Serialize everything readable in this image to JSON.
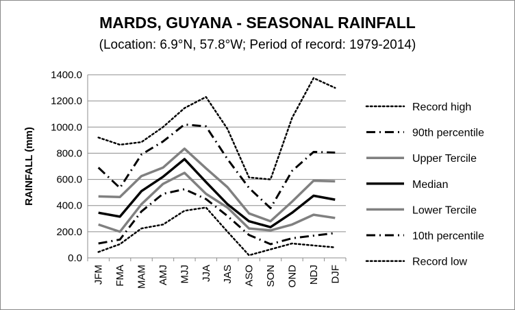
{
  "chart_data": {
    "type": "line",
    "title": "MARDS, GUYANA - SEASONAL RAINFALL",
    "subtitle": "(Location: 6.9°N, 57.8°W; Period of record: 1979-2014)",
    "ylabel": "RAINFALL (mm)",
    "xlabel": "",
    "ylim": [
      0,
      1400
    ],
    "yticks": [
      "0.0",
      "200.0",
      "400.0",
      "600.0",
      "800.0",
      "1000.0",
      "1200.0",
      "1400.0"
    ],
    "grid": true,
    "legend_position": "right",
    "categories": [
      "JFM",
      "FMA",
      "MAM",
      "AMJ",
      "MJJ",
      "JJA",
      "JAS",
      "ASO",
      "SON",
      "OND",
      "NDJ",
      "DJF"
    ],
    "series": [
      {
        "name": "Record high",
        "style": "dotted",
        "color": "#000000",
        "values": [
          920,
          865,
          885,
          1000,
          1145,
          1230,
          985,
          615,
          600,
          1070,
          1375,
          1300
        ]
      },
      {
        "name": "90th percentile",
        "style": "dashdot",
        "color": "#000000",
        "values": [
          690,
          535,
          790,
          890,
          1020,
          1005,
          755,
          535,
          380,
          665,
          810,
          805
        ]
      },
      {
        "name": "Upper Tercile",
        "style": "solid-gray",
        "color": "#808080",
        "values": [
          470,
          465,
          625,
          690,
          835,
          685,
          540,
          340,
          280,
          430,
          590,
          585
        ]
      },
      {
        "name": "Median",
        "style": "solid",
        "color": "#000000",
        "values": [
          345,
          315,
          510,
          620,
          755,
          580,
          410,
          280,
          235,
          345,
          475,
          445
        ]
      },
      {
        "name": "Lower Tercile",
        "style": "solid-gray",
        "color": "#808080",
        "values": [
          255,
          200,
          410,
          565,
          650,
          490,
          385,
          225,
          210,
          255,
          330,
          305
        ]
      },
      {
        "name": "10th percentile",
        "style": "dashdot",
        "color": "#000000",
        "values": [
          110,
          140,
          355,
          490,
          525,
          450,
          320,
          175,
          105,
          150,
          170,
          190
        ]
      },
      {
        "name": "Record low",
        "style": "dotted",
        "color": "#000000",
        "values": [
          45,
          105,
          225,
          255,
          360,
          385,
          200,
          20,
          65,
          110,
          95,
          80
        ]
      }
    ]
  }
}
